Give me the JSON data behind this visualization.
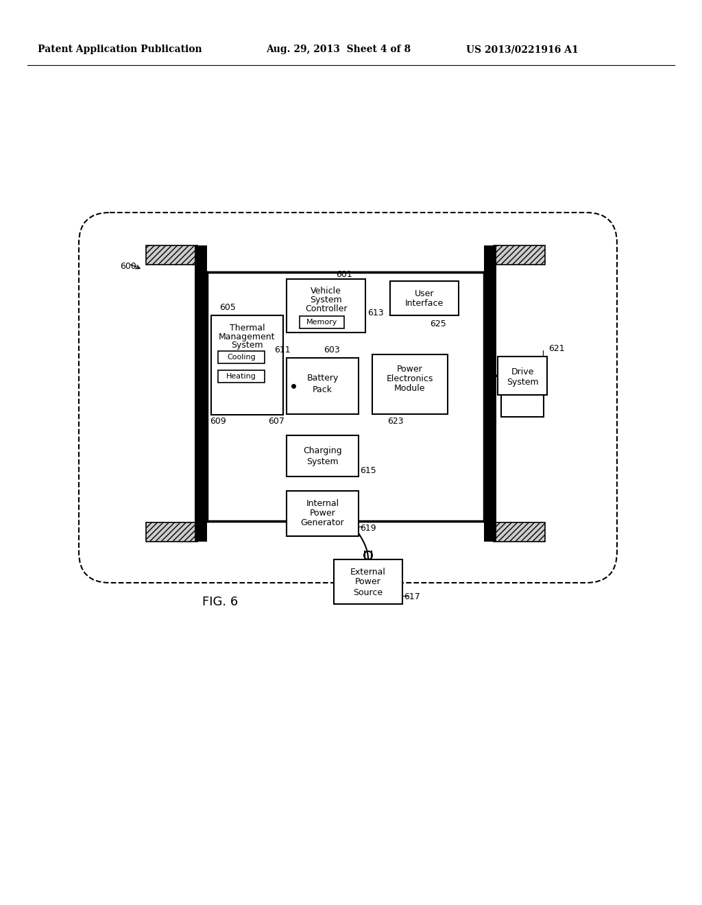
{
  "header_left": "Patent Application Publication",
  "header_mid": "Aug. 29, 2013  Sheet 4 of 8",
  "header_right": "US 2013/0221916 A1",
  "fig_label": "FIG. 6",
  "bg_color": "#ffffff"
}
